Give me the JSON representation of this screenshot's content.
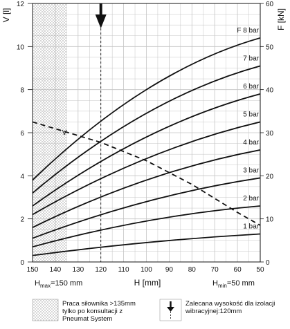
{
  "chart_data": {
    "type": "line",
    "x_axis": {
      "label": "H [mm]",
      "min": 150,
      "max": 50,
      "reversed": true,
      "ticks": [
        150,
        140,
        130,
        120,
        110,
        100,
        90,
        80,
        70,
        60,
        50
      ]
    },
    "y_left": {
      "label": "V [l]",
      "min": 0,
      "max": 12,
      "ticks": [
        0,
        2,
        4,
        6,
        8,
        10,
        12
      ]
    },
    "y_right": {
      "label": "F [kN]",
      "min": 0,
      "max": 60,
      "ticks": [
        0,
        10,
        20,
        30,
        40,
        50,
        60
      ]
    },
    "grid": true,
    "x_labels": {
      "hmax": {
        "main": "H",
        "sub": "max",
        "value": "=150 mm"
      },
      "hmin": {
        "main": "H",
        "sub": "min",
        "value": "=50 mm"
      }
    },
    "force_series": [
      {
        "name": "1 bar",
        "x": [
          150,
          100,
          50
        ],
        "y": [
          1.5,
          4.5,
          6.5
        ]
      },
      {
        "name": "2 bar",
        "x": [
          150,
          100,
          50
        ],
        "y": [
          3.5,
          9.5,
          13
        ]
      },
      {
        "name": "3 bar",
        "x": [
          150,
          100,
          50
        ],
        "y": [
          5.5,
          14,
          19.5
        ]
      },
      {
        "name": "4 bar",
        "x": [
          150,
          100,
          50
        ],
        "y": [
          8,
          19,
          26
        ]
      },
      {
        "name": "5 bar",
        "x": [
          150,
          100,
          50
        ],
        "y": [
          11,
          24,
          32.5
        ]
      },
      {
        "name": "6 bar",
        "x": [
          150,
          100,
          50
        ],
        "y": [
          13,
          29,
          39
        ]
      },
      {
        "name": "7 bar",
        "x": [
          150,
          100,
          50
        ],
        "y": [
          16,
          34.5,
          45.5
        ]
      },
      {
        "name": "F 8 bar",
        "x": [
          150,
          100,
          50
        ],
        "y": [
          19,
          40,
          52
        ]
      }
    ],
    "volume_series": {
      "name": "V",
      "dashed": true,
      "x": [
        150,
        120,
        100,
        80,
        60,
        50
      ],
      "y": [
        6.5,
        5.55,
        4.7,
        3.6,
        2.3,
        1.7
      ]
    },
    "annotations": {
      "hatched_region": {
        "x_from": 150,
        "x_to": 135
      },
      "recommended_height": {
        "x": 120,
        "arrow": true,
        "dashed_line": true
      }
    }
  },
  "legend": {
    "hatched_text": "Praca siłownika >135mm\ntylko po konsultacji z\nPneumat System",
    "arrow_text": "Zalecana wysokość dla izolacji\nwibracyjnej:120mm"
  }
}
